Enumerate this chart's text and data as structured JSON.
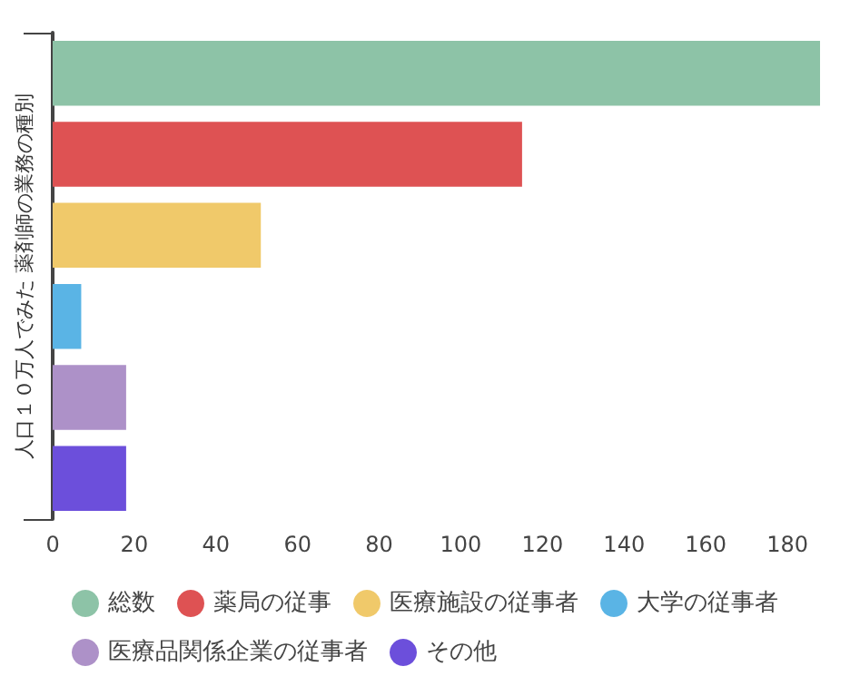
{
  "chart_data": {
    "type": "bar",
    "orientation": "horizontal",
    "ylabel": "人口１０万人でみた 薬剤師の業務の種別",
    "categories": [
      null,
      null,
      null,
      null,
      null,
      null
    ],
    "series": [
      {
        "name": "総数",
        "color": "#8dc3a7",
        "values": [
          188,
          null,
          null,
          null,
          null,
          null
        ]
      },
      {
        "name": "薬局の従事",
        "color": "#de5253",
        "values": [
          null,
          115,
          null,
          null,
          null,
          null
        ]
      },
      {
        "name": "医療施設の従事者",
        "color": "#f0c96a",
        "values": [
          null,
          null,
          51,
          null,
          null,
          null
        ]
      },
      {
        "name": "大学の従事者",
        "color": "#5ab4e5",
        "values": [
          null,
          null,
          null,
          7,
          null,
          null
        ]
      },
      {
        "name": "医療品関係企業の従事者",
        "color": "#ad91c8",
        "values": [
          null,
          null,
          null,
          null,
          18,
          null
        ]
      },
      {
        "name": "その他",
        "color": "#6c4fdb",
        "values": [
          null,
          null,
          null,
          null,
          null,
          18
        ]
      }
    ],
    "xlim": [
      0,
      190
    ],
    "xticks": [
      0,
      20,
      40,
      60,
      80,
      100,
      120,
      140,
      160,
      180
    ],
    "tick_labels": "x",
    "grid": false,
    "legend": "bottom"
  }
}
